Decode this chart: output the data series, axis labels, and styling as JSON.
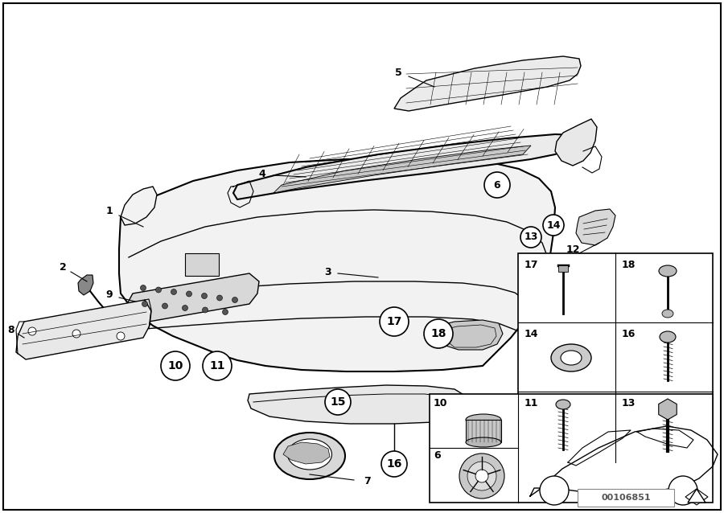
{
  "bg_color": "#ffffff",
  "diagram_id": "00106851",
  "fig_w": 9.0,
  "fig_h": 6.38,
  "dpi": 100
}
